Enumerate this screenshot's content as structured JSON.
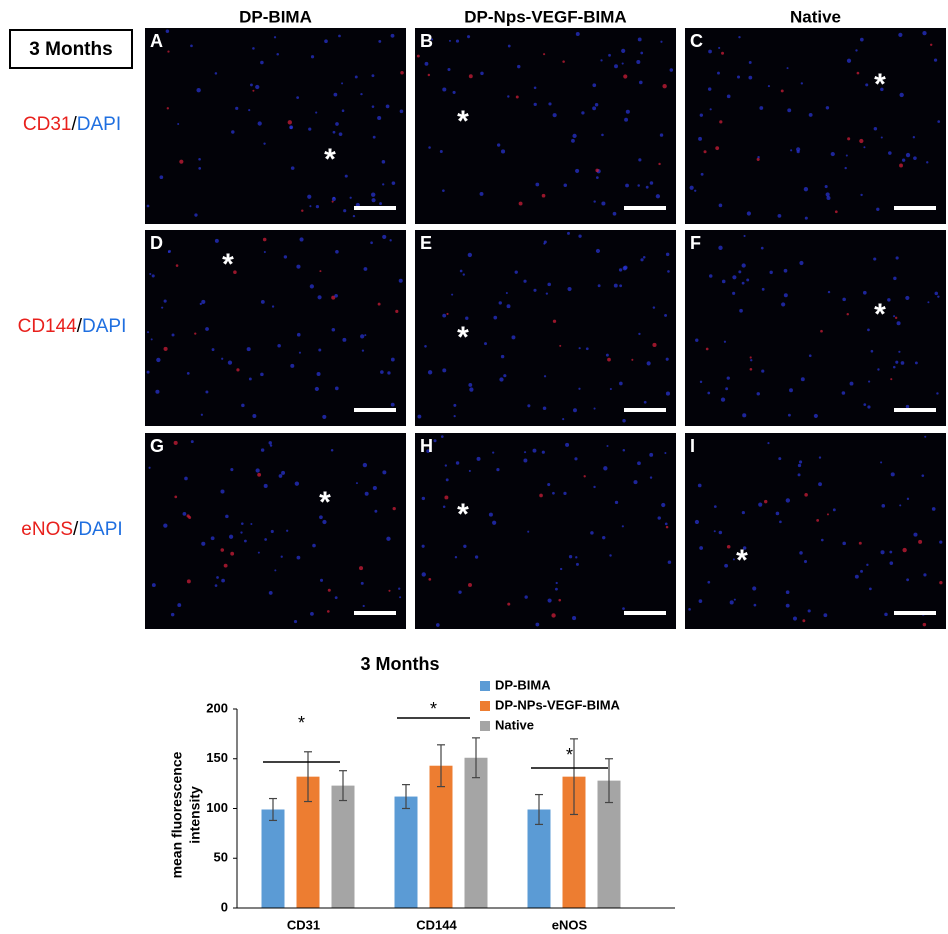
{
  "header": {
    "columns": [
      "DP-BIMA",
      "DP-Nps-VEGF-BIMA",
      "Native"
    ],
    "badge": "3 Months"
  },
  "separator": "/",
  "rows": [
    {
      "marker": "CD31",
      "stain": "DAPI"
    },
    {
      "marker": "CD144",
      "stain": "DAPI"
    },
    {
      "marker": "eNOS",
      "stain": "DAPI"
    }
  ],
  "panels": [
    {
      "letter": "A",
      "asterisk": "*"
    },
    {
      "letter": "B",
      "asterisk": "*"
    },
    {
      "letter": "C",
      "asterisk": "*"
    },
    {
      "letter": "D",
      "asterisk": "*"
    },
    {
      "letter": "E",
      "asterisk": "*"
    },
    {
      "letter": "F",
      "asterisk": "*"
    },
    {
      "letter": "G",
      "asterisk": "*"
    },
    {
      "letter": "H",
      "asterisk": "*"
    },
    {
      "letter": "I",
      "asterisk": "*"
    }
  ],
  "chart_data": {
    "type": "bar",
    "title": "3 Months",
    "ylabel": [
      "mean fluorescence",
      "intensity"
    ],
    "categories": [
      "CD31",
      "CD144",
      "eNOS"
    ],
    "series": [
      {
        "name": "DP-BIMA",
        "color": "#5b9bd5",
        "values": [
          99,
          112,
          99
        ],
        "errors": [
          11,
          12,
          15
        ]
      },
      {
        "name": "DP-NPs-VEGF-BIMA",
        "color": "#ed7d31",
        "values": [
          132,
          143,
          132
        ],
        "errors": [
          25,
          21,
          38
        ]
      },
      {
        "name": "Native",
        "color": "#a5a5a5",
        "values": [
          123,
          151,
          128
        ],
        "errors": [
          15,
          20,
          22
        ]
      }
    ],
    "annotations": [
      "*",
      "*",
      "*"
    ],
    "ylim": [
      0,
      200
    ],
    "yticks": [
      0,
      50,
      100,
      150,
      200
    ],
    "grid": false
  }
}
